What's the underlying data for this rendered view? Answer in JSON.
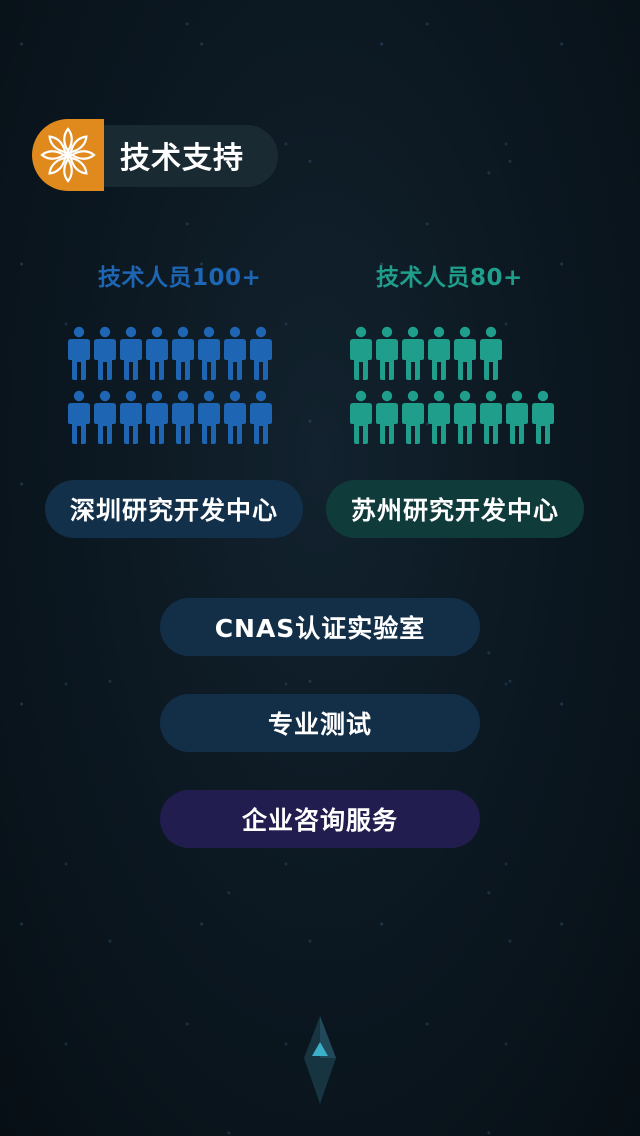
{
  "section": {
    "title": "技术支持",
    "icon": "snowflake-flower-icon"
  },
  "teams": [
    {
      "label": "技术人员100+",
      "center": "深圳研究开发中心",
      "color": "#1e66b3",
      "pill_bg": "#12304a",
      "rows": [
        8,
        8
      ]
    },
    {
      "label": "技术人员80+",
      "center": "苏州研究开发中心",
      "color": "#1f9e8c",
      "pill_bg": "#0f3b3a",
      "rows": [
        6,
        8
      ]
    }
  ],
  "features": [
    {
      "label": "CNAS认证实验室",
      "bg": "#132f48"
    },
    {
      "label": "专业测试",
      "bg": "#132f48"
    },
    {
      "label": "企业咨询服务",
      "bg": "#221d4f"
    }
  ],
  "scroll_hint": {
    "icon": "arrow-up-diamond-icon"
  },
  "colors": {
    "accent": "#e08a1e"
  }
}
